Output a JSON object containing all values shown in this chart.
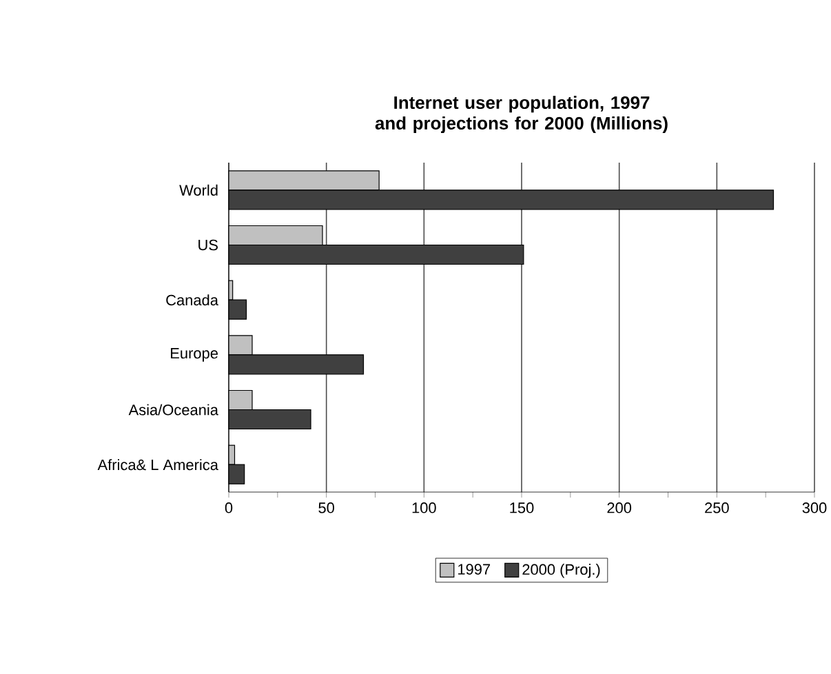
{
  "chart_data": {
    "type": "bar",
    "orientation": "horizontal",
    "title": "Internet user population, 1997 and projections for 2000 (Millions)",
    "categories": [
      "World",
      "US",
      "Canada",
      "Europe",
      "Asia/Oceania",
      "Africa& L America"
    ],
    "series": [
      {
        "name": "1997",
        "color": "#c0c0c0",
        "values": [
          77,
          48,
          2,
          12,
          12,
          3
        ]
      },
      {
        "name": "2000 (Proj.)",
        "color": "#404040",
        "values": [
          279,
          151,
          9,
          69,
          42,
          8
        ]
      }
    ],
    "xlim": [
      0,
      300
    ],
    "xticks": [
      0,
      {
        "value": 25,
        "label": null
      },
      50,
      {
        "value": 75,
        "label": null
      },
      100,
      {
        "value": 125,
        "label": null
      },
      150,
      {
        "value": 175,
        "label": null
      },
      200,
      {
        "value": 225,
        "label": null
      },
      250,
      {
        "value": 275,
        "label": null
      },
      300
    ],
    "grid": "x",
    "legend": "bottom"
  }
}
